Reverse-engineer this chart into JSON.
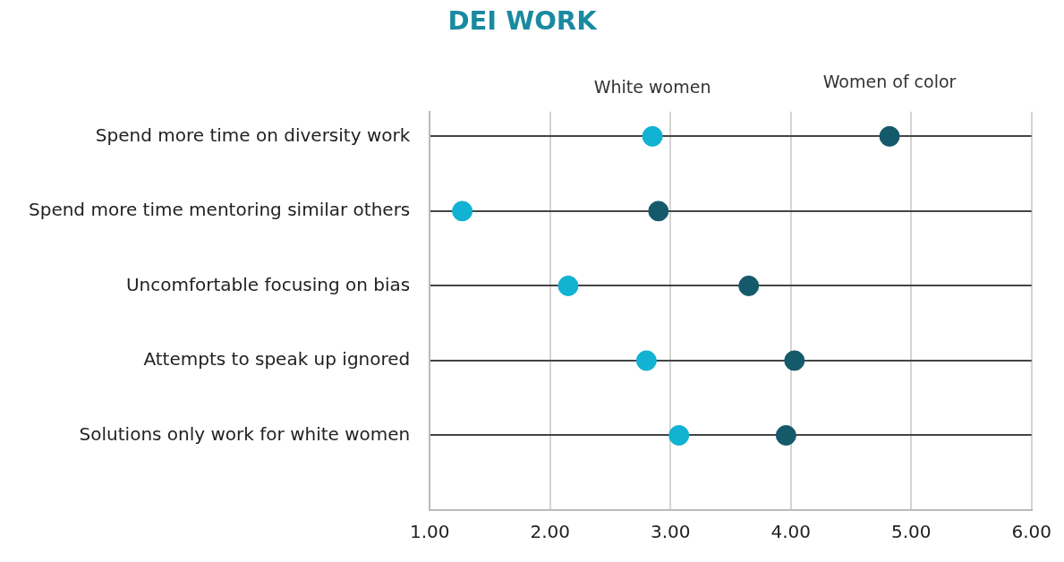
{
  "chart_data": {
    "type": "scatter",
    "title": "DEI WORK",
    "orientation": "horizontal",
    "marker": "circle",
    "grid": true,
    "categories": [
      "Spend more time on diversity work",
      "Spend more time mentoring similar others",
      "Uncomfortable focusing on bias",
      "Attempts to speak up ignored",
      "Solutions only work for white women"
    ],
    "series": [
      {
        "name": "White women",
        "color": "#12b2d2",
        "values": [
          2.85,
          1.27,
          2.15,
          2.8,
          3.07
        ]
      },
      {
        "name": "Women of color",
        "color": "#155a6a",
        "values": [
          4.82,
          2.9,
          3.65,
          4.03,
          3.96
        ]
      }
    ],
    "xlim": [
      1,
      6
    ],
    "xticks": [
      {
        "value": 1,
        "label": "1.00"
      },
      {
        "value": 2,
        "label": "2.00"
      },
      {
        "value": 3,
        "label": "3.00"
      },
      {
        "value": 4,
        "label": "4.00"
      },
      {
        "value": 5,
        "label": "5.00"
      },
      {
        "value": 6,
        "label": "6.00"
      }
    ]
  }
}
